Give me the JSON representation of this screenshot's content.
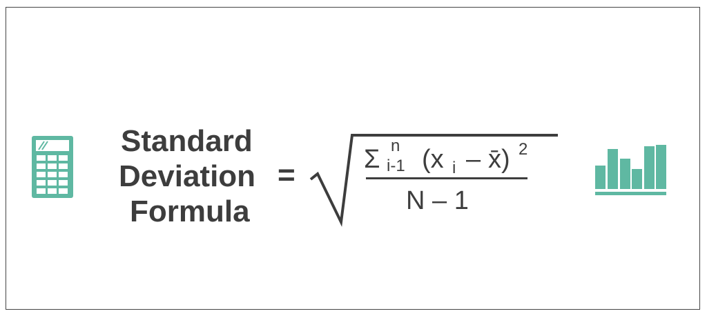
{
  "icons": {
    "left": "calculator-icon",
    "right": "bar-chart-icon",
    "accent_color": "#5fb8a2"
  },
  "title": {
    "line1": "Standard",
    "line2": "Deviation",
    "line3": "Formula"
  },
  "equals": "=",
  "formula": {
    "sigma": "Σ",
    "upper_limit": "n",
    "lower_limit": "i-1",
    "open_paren": "(x",
    "subscript_i": "i",
    "minus": "–",
    "xbar": "x̄)",
    "exponent": "2",
    "denominator": "N – 1"
  },
  "colors": {
    "text": "#3d3d3d",
    "accent": "#5fb8a2"
  }
}
